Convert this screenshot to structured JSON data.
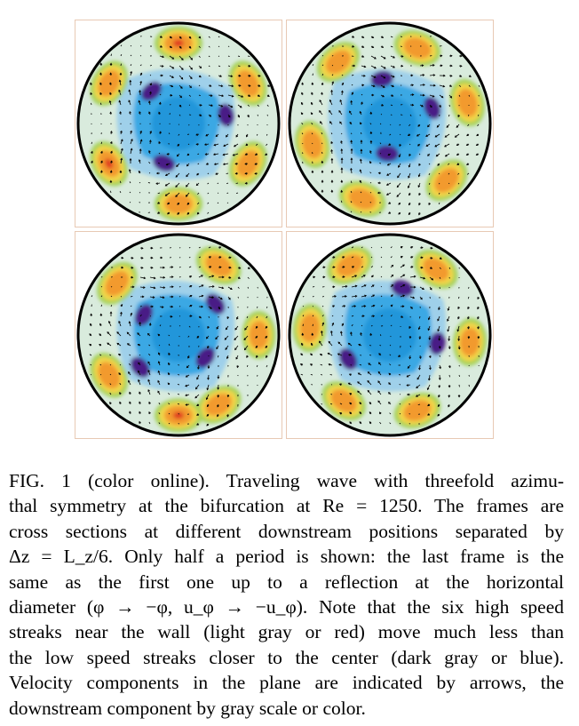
{
  "figure": {
    "panels": [
      {
        "id": "frame-1"
      },
      {
        "id": "frame-2"
      },
      {
        "id": "frame-3"
      },
      {
        "id": "frame-4"
      }
    ],
    "colormap": [
      "#d9ebdd",
      "#9fd0ea",
      "#3aa8e4",
      "#0b86d2",
      "#4a1f86",
      "#a5d25a",
      "#f2d64a",
      "#f29a2e",
      "#e03b22"
    ]
  },
  "caption": {
    "lines": [
      "FIG. 1 (color online).   Traveling wave with threefold azimu-",
      "thal symmetry at the bifurcation at Re = 1250. The frames are",
      "cross sections at different downstream positions separated by",
      "Δz = L_z/6. Only half a period is shown: the last frame is the",
      "same as the first one up to a reflection at the horizontal",
      "diameter (φ → −φ, u_φ → −u_φ). Note that the six high speed",
      "streaks near the wall (light gray or red) move much less than",
      "the low speed streaks closer to the center (dark gray or blue).",
      "Velocity components in the plane are indicated by arrows, the",
      "downstream component by gray scale or color."
    ]
  }
}
